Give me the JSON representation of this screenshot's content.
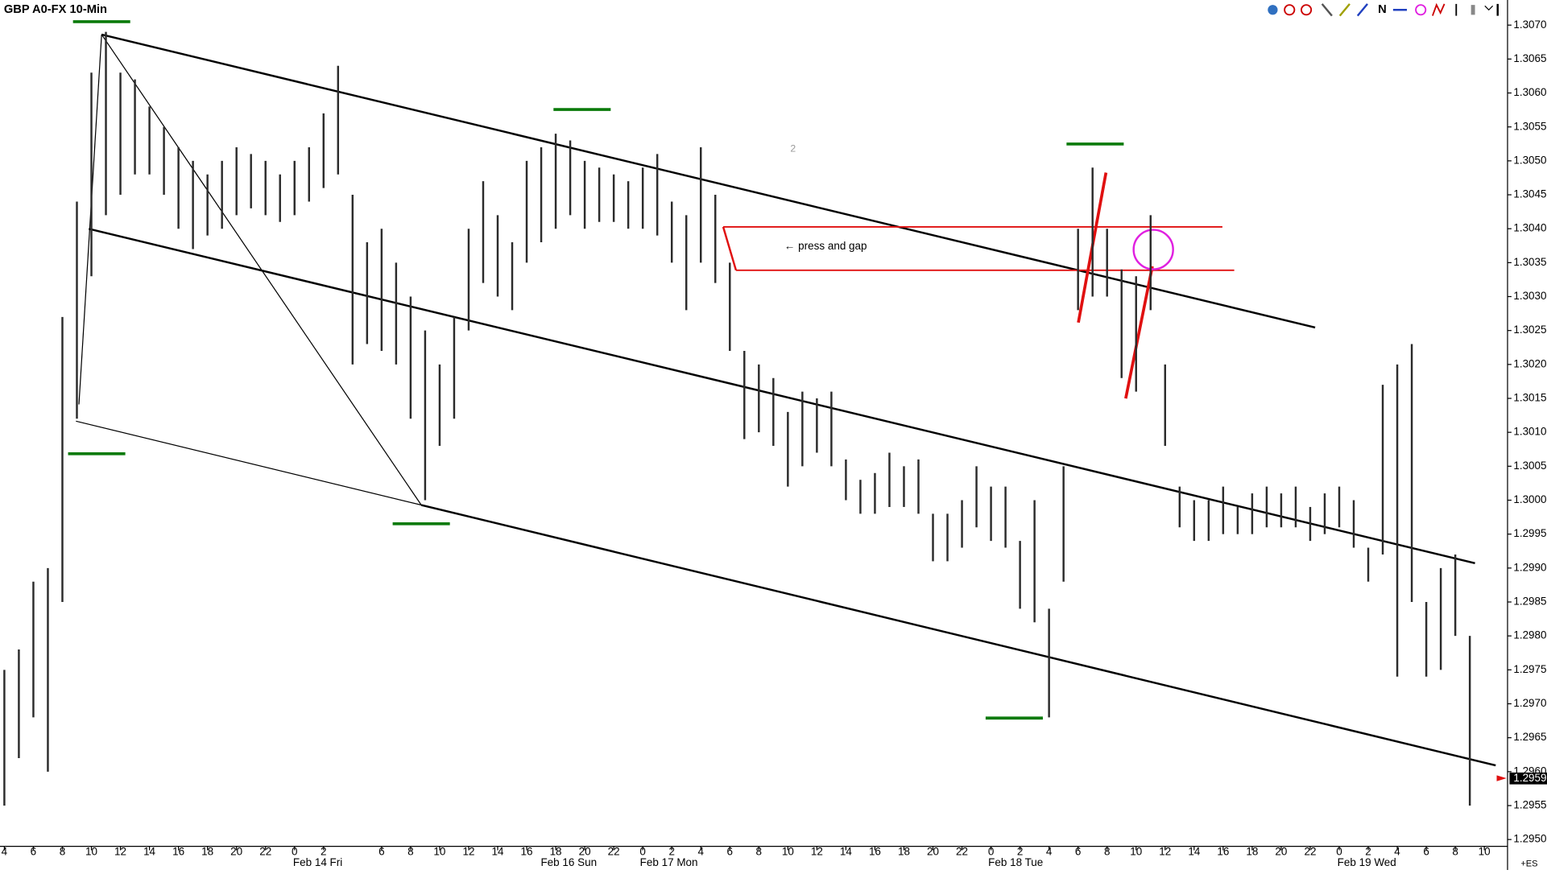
{
  "chart_data": {
    "type": "hilo",
    "title": "GBP A0-FX 10-Min",
    "color": "#2b2b2b",
    "grid": false,
    "xlim": [
      -0.3,
      103.6
    ],
    "ylim": [
      1.2949,
      1.30737
    ],
    "xticks": [
      {
        "value": 0,
        "label": "4"
      },
      {
        "value": 2,
        "label": "6"
      },
      {
        "value": 4,
        "label": "8"
      },
      {
        "value": 6,
        "label": "10"
      },
      {
        "value": 8,
        "label": "12"
      },
      {
        "value": 10,
        "label": "14"
      },
      {
        "value": 12,
        "label": "16"
      },
      {
        "value": 14,
        "label": "18"
      },
      {
        "value": 16,
        "label": "20"
      },
      {
        "value": 18,
        "label": "22"
      },
      {
        "value": 20,
        "label": "0"
      },
      {
        "value": 22,
        "label": "2"
      },
      {
        "value": 26,
        "label": "6"
      },
      {
        "value": 28,
        "label": "8"
      },
      {
        "value": 30,
        "label": "10"
      },
      {
        "value": 32,
        "label": "12"
      },
      {
        "value": 34,
        "label": "14"
      },
      {
        "value": 36,
        "label": "16"
      },
      {
        "value": 38,
        "label": "18"
      },
      {
        "value": 40,
        "label": "20"
      },
      {
        "value": 42,
        "label": "22"
      },
      {
        "value": 44,
        "label": "0"
      },
      {
        "value": 46,
        "label": "2"
      },
      {
        "value": 48,
        "label": "4"
      },
      {
        "value": 50,
        "label": "6"
      },
      {
        "value": 52,
        "label": "8"
      },
      {
        "value": 54,
        "label": "10"
      },
      {
        "value": 56,
        "label": "12"
      },
      {
        "value": 58,
        "label": "14"
      },
      {
        "value": 60,
        "label": "16"
      },
      {
        "value": 62,
        "label": "18"
      },
      {
        "value": 64,
        "label": "20"
      },
      {
        "value": 66,
        "label": "22"
      },
      {
        "value": 68,
        "label": "0"
      },
      {
        "value": 70,
        "label": "2"
      },
      {
        "value": 72,
        "label": "4"
      },
      {
        "value": 74,
        "label": "6"
      },
      {
        "value": 76,
        "label": "8"
      },
      {
        "value": 78,
        "label": "10"
      },
      {
        "value": 80,
        "label": "12"
      },
      {
        "value": 82,
        "label": "14"
      },
      {
        "value": 84,
        "label": "16"
      },
      {
        "value": 86,
        "label": "18"
      },
      {
        "value": 88,
        "label": "20"
      },
      {
        "value": 90,
        "label": "22"
      },
      {
        "value": 92,
        "label": "0"
      },
      {
        "value": 94,
        "label": "2"
      },
      {
        "value": 96,
        "label": "4"
      },
      {
        "value": 98,
        "label": "6"
      },
      {
        "value": 100,
        "label": "8"
      },
      {
        "value": 102,
        "label": "10"
      }
    ],
    "date_labels": [
      {
        "value": 21.6,
        "label": "Feb 14 Fri"
      },
      {
        "value": 38.9,
        "label": "Feb 16 Sun"
      },
      {
        "value": 45.8,
        "label": "Feb 17 Mon"
      },
      {
        "value": 69.7,
        "label": "Feb 18 Tue"
      },
      {
        "value": 93.9,
        "label": "Feb 19 Wed"
      }
    ],
    "yticks": [
      {
        "value": 1.295,
        "label": "1.2950"
      },
      {
        "value": 1.2955,
        "label": "1.2955"
      },
      {
        "value": 1.296,
        "label": "1.2960"
      },
      {
        "value": 1.2965,
        "label": "1.2965"
      },
      {
        "value": 1.297,
        "label": "1.2970"
      },
      {
        "value": 1.2975,
        "label": "1.2975"
      },
      {
        "value": 1.298,
        "label": "1.2980"
      },
      {
        "value": 1.2985,
        "label": "1.2985"
      },
      {
        "value": 1.299,
        "label": "1.2990"
      },
      {
        "value": 1.2995,
        "label": "1.2995"
      },
      {
        "value": 1.3,
        "label": "1.3000"
      },
      {
        "value": 1.3005,
        "label": "1.3005"
      },
      {
        "value": 1.301,
        "label": "1.3010"
      },
      {
        "value": 1.3015,
        "label": "1.3015"
      },
      {
        "value": 1.302,
        "label": "1.3020"
      },
      {
        "value": 1.3025,
        "label": "1.3025"
      },
      {
        "value": 1.303,
        "label": "1.3030"
      },
      {
        "value": 1.3035,
        "label": "1.3035"
      },
      {
        "value": 1.304,
        "label": "1.3040"
      },
      {
        "value": 1.3045,
        "label": "1.3045"
      },
      {
        "value": 1.305,
        "label": "1.3050"
      },
      {
        "value": 1.3055,
        "label": "1.3055"
      },
      {
        "value": 1.306,
        "label": "1.3060"
      },
      {
        "value": 1.3065,
        "label": "1.3065"
      },
      {
        "value": 1.307,
        "label": "1.3070"
      }
    ],
    "x": [
      0,
      1,
      2,
      3,
      4,
      5,
      6,
      7,
      8,
      9,
      10,
      11,
      12,
      13,
      14,
      15,
      16,
      17,
      18,
      19,
      20,
      21,
      22,
      23,
      24,
      25,
      26,
      27,
      28,
      29,
      30,
      31,
      32,
      33,
      34,
      35,
      36,
      37,
      38,
      39,
      40,
      41,
      42,
      43,
      44,
      45,
      46,
      47,
      48,
      49,
      50,
      51,
      52,
      53,
      54,
      55,
      56,
      57,
      58,
      59,
      60,
      61,
      62,
      63,
      64,
      65,
      66,
      67,
      68,
      69,
      70,
      71,
      72,
      73,
      74,
      75,
      76,
      77,
      78,
      79,
      80,
      81,
      82,
      83,
      84,
      85,
      86,
      87,
      88,
      89,
      90,
      91,
      92,
      93,
      94,
      95,
      96,
      97,
      98,
      99,
      100,
      101
    ],
    "high": [
      1.2975,
      1.2978,
      1.2988,
      1.299,
      1.3027,
      1.3044,
      1.3063,
      1.3069,
      1.3063,
      1.3062,
      1.3058,
      1.3055,
      1.3052,
      1.305,
      1.3048,
      1.305,
      1.3052,
      1.3051,
      1.305,
      1.3048,
      1.305,
      1.3052,
      1.3057,
      1.3064,
      1.3045,
      1.3038,
      1.304,
      1.3035,
      1.303,
      1.3025,
      1.302,
      1.3027,
      1.304,
      1.3047,
      1.3042,
      1.3038,
      1.305,
      1.3052,
      1.3054,
      1.3053,
      1.305,
      1.3049,
      1.3048,
      1.3047,
      1.3049,
      1.3051,
      1.3044,
      1.3042,
      1.3052,
      1.3045,
      1.3035,
      1.3022,
      1.302,
      1.3018,
      1.3013,
      1.3016,
      1.3015,
      1.3016,
      1.3006,
      1.3003,
      1.3004,
      1.3007,
      1.3005,
      1.3006,
      1.2998,
      1.2998,
      1.3,
      1.3005,
      1.3002,
      1.3002,
      1.2994,
      1.3,
      1.2984,
      1.3005,
      1.304,
      1.3049,
      1.304,
      1.3034,
      1.3033,
      1.3042,
      1.302,
      1.3002,
      1.3,
      1.3,
      1.3002,
      1.2999,
      1.3001,
      1.3002,
      1.3001,
      1.3002,
      1.2999,
      1.3001,
      1.3002,
      1.3,
      1.2993,
      1.3017,
      1.302,
      1.3023,
      1.2985,
      1.299,
      1.2992,
      1.298
    ],
    "low": [
      1.2955,
      1.2962,
      1.2968,
      1.296,
      1.2985,
      1.3012,
      1.3033,
      1.3042,
      1.3045,
      1.3048,
      1.3048,
      1.3045,
      1.304,
      1.3037,
      1.3039,
      1.304,
      1.3042,
      1.3043,
      1.3042,
      1.3041,
      1.3042,
      1.3044,
      1.3046,
      1.3048,
      1.302,
      1.3023,
      1.3022,
      1.302,
      1.3012,
      1.3,
      1.3008,
      1.3012,
      1.3025,
      1.3032,
      1.303,
      1.3028,
      1.3035,
      1.3038,
      1.304,
      1.3042,
      1.304,
      1.3041,
      1.3041,
      1.304,
      1.304,
      1.3039,
      1.3035,
      1.3028,
      1.3035,
      1.3032,
      1.3022,
      1.3009,
      1.301,
      1.3008,
      1.3002,
      1.3005,
      1.3007,
      1.3005,
      1.3,
      1.2998,
      1.2998,
      1.2999,
      1.2999,
      1.2998,
      1.2991,
      1.2991,
      1.2993,
      1.2996,
      1.2994,
      1.2993,
      1.2984,
      1.2982,
      1.2968,
      1.2988,
      1.3028,
      1.303,
      1.303,
      1.3018,
      1.3016,
      1.3028,
      1.3008,
      1.2996,
      1.2994,
      1.2994,
      1.2995,
      1.2995,
      1.2995,
      1.2996,
      1.2996,
      1.2996,
      1.2994,
      1.2995,
      1.2996,
      1.2993,
      1.2988,
      1.2992,
      1.2974,
      1.2985,
      1.2974,
      1.2975,
      1.298,
      1.2955
    ],
    "last_price": {
      "value": 1.2959,
      "label": "1.2959"
    },
    "annotations": [
      "← press and gap",
      "2"
    ],
    "toolbar_letter": "N",
    "footer_text": "+ES"
  }
}
